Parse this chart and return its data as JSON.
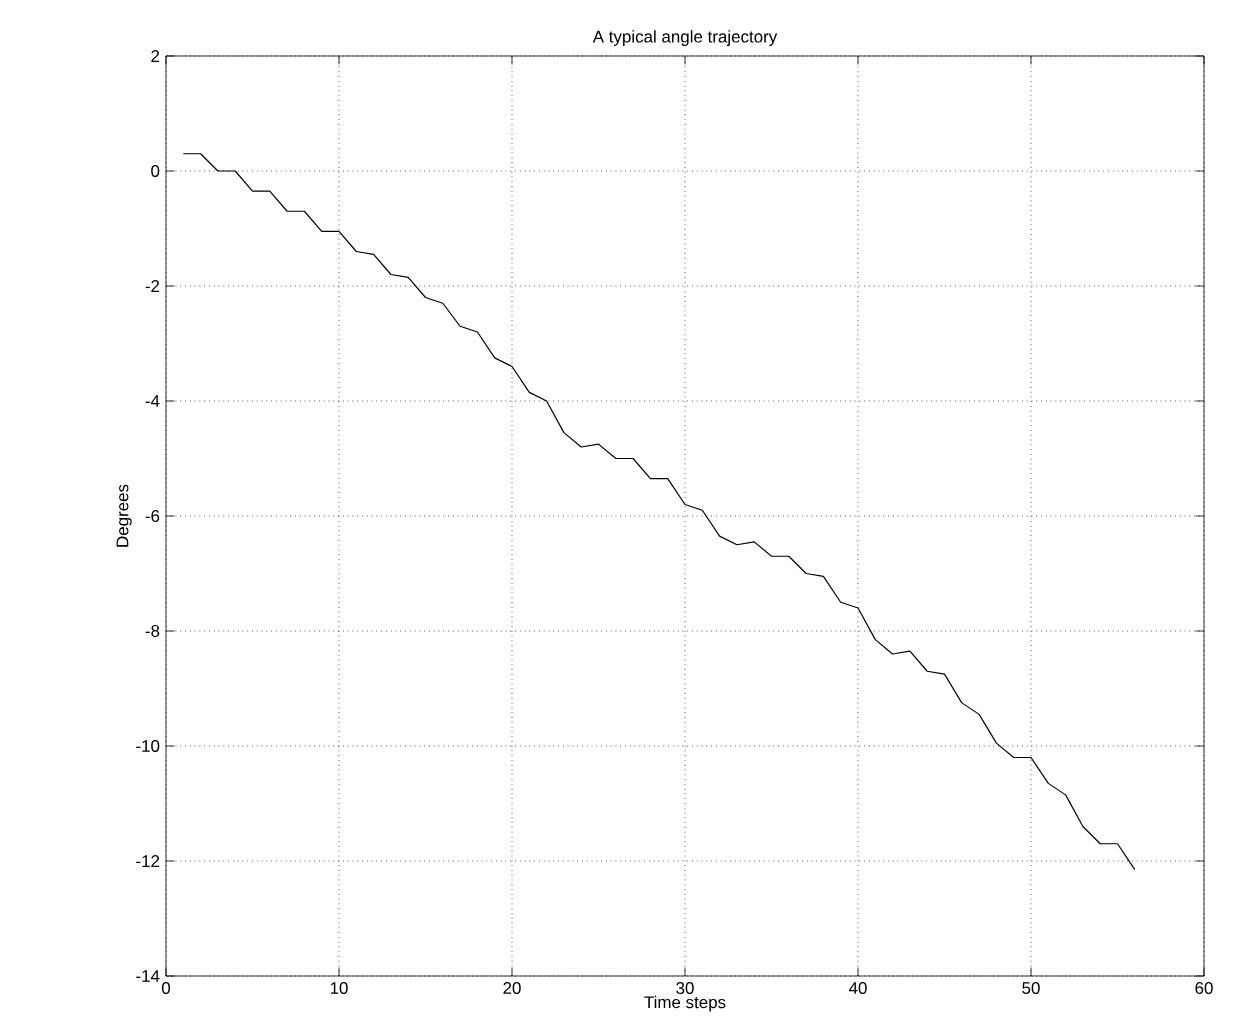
{
  "chart_data": {
    "type": "line",
    "title": "A typical angle trajectory",
    "xlabel": "Time steps",
    "ylabel": "Degrees",
    "x": [
      1,
      2,
      3,
      4,
      5,
      6,
      7,
      8,
      9,
      10,
      11,
      12,
      13,
      14,
      15,
      16,
      17,
      18,
      19,
      20,
      21,
      22,
      23,
      24,
      25,
      26,
      27,
      28,
      29,
      30,
      31,
      32,
      33,
      34,
      35,
      36,
      37,
      38,
      39,
      40,
      41,
      42,
      43,
      44,
      45,
      46,
      47,
      48,
      49,
      50,
      51,
      52,
      53,
      54,
      55,
      56
    ],
    "series": [
      {
        "color": "#000000",
        "values": [
          0.3,
          0.3,
          0,
          0,
          -0.35,
          -0.35,
          -0.7,
          -0.7,
          -1.05,
          -1.05,
          -1.4,
          -1.45,
          -1.8,
          -1.85,
          -2.2,
          -2.3,
          -2.7,
          -2.8,
          -3.25,
          -3.4,
          -3.85,
          -4.0,
          -4.55,
          -4.8,
          -4.75,
          -5.0,
          -5.0,
          -5.35,
          -5.35,
          -5.8,
          -5.9,
          -6.35,
          -6.5,
          -6.45,
          -6.7,
          -6.7,
          -7.0,
          -7.05,
          -7.5,
          -7.6,
          -8.15,
          -8.4,
          -8.35,
          -8.7,
          -8.75,
          -9.25,
          -9.45,
          -9.95,
          -10.2,
          -10.2,
          -10.65,
          -10.85,
          -11.4,
          -11.7,
          -11.7,
          -12.15
        ]
      }
    ],
    "xlim": [
      0,
      60
    ],
    "ylim": [
      -14,
      2
    ],
    "xticks": [
      0,
      10,
      20,
      30,
      40,
      50,
      60
    ],
    "yticks": [
      -14,
      -12,
      -10,
      -8,
      -6,
      -4,
      -2,
      0,
      2
    ],
    "grid": true,
    "marker": "none",
    "line_style": "solid"
  }
}
